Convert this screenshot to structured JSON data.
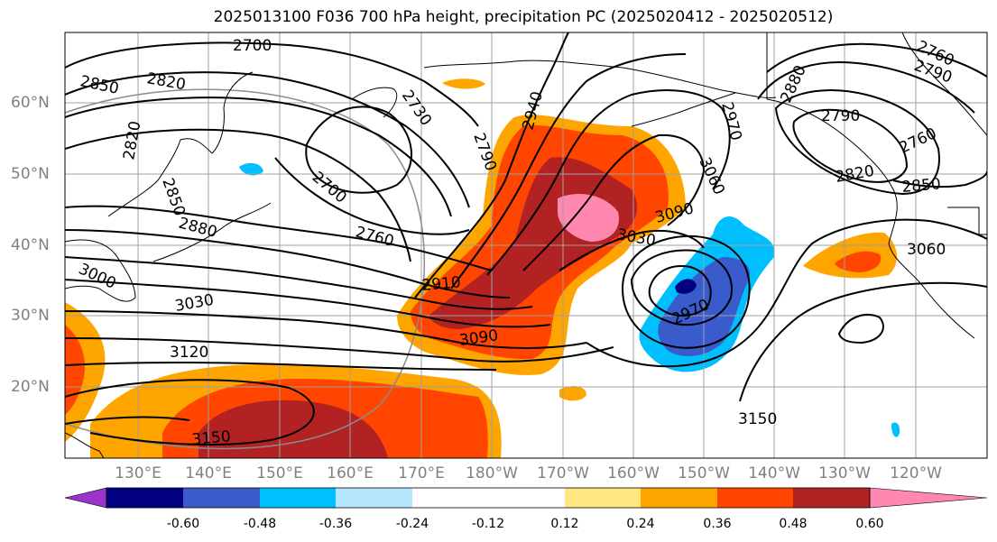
{
  "title": "2025013100 F036 700 hPa height, precipitation PC (2025020412 - 2025020512)",
  "lat_labels": [
    "60°N",
    "50°N",
    "40°N",
    "30°N",
    "20°N"
  ],
  "lon_labels": [
    "130°E",
    "140°E",
    "150°E",
    "160°E",
    "170°E",
    "180°W",
    "170°W",
    "160°W",
    "150°W",
    "140°W",
    "130°W",
    "120°W"
  ],
  "contour_labels": [
    "2700",
    "2850",
    "2820",
    "2820",
    "2850",
    "2730",
    "2700",
    "2760",
    "2880",
    "3000",
    "3030",
    "3120",
    "3150",
    "2910",
    "3090",
    "2940",
    "2790",
    "3090",
    "3030",
    "3060",
    "2970",
    "2970",
    "3150",
    "2880",
    "2790",
    "2760",
    "2820",
    "2850",
    "3060",
    "2760",
    "2790"
  ],
  "colorbar": {
    "ticks": [
      "-0.60",
      "-0.48",
      "-0.36",
      "-0.24",
      "-0.12",
      "0.12",
      "0.24",
      "0.36",
      "0.48",
      "0.60"
    ],
    "colors": {
      "under": "#9933cc",
      "neg060": "#000080",
      "neg048": "#3a5bcc",
      "neg036": "#00bfff",
      "neg024": "#b3e5fc",
      "zero": "#ffffff",
      "pos012": "#ffe680",
      "pos024": "#ffa500",
      "pos036": "#ff4500",
      "pos048": "#b22222",
      "over": "#ff88b0"
    }
  }
}
